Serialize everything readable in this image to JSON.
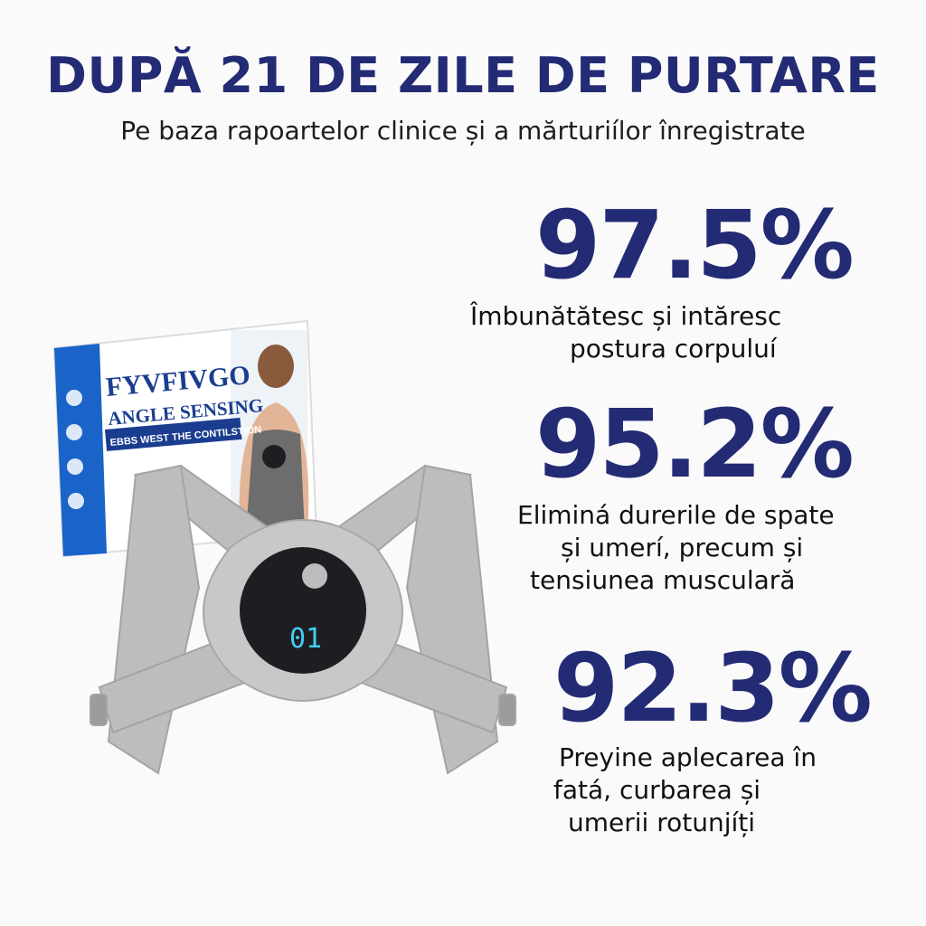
{
  "header": {
    "title": "DUPĂ 21 DE ZILE DE PURTARE",
    "subtitle": "Pe baza rapoartelor clinice și a mărturiílor înregistrate"
  },
  "product": {
    "brand": "FYVFIVGO",
    "line1": "ANGLE SENSING",
    "line2": "EBBS WEST THE CONTILSTION",
    "display": "01",
    "colors": {
      "box_blue": "#1a63c8",
      "strap_gray": "#b9b9b9",
      "device_dark": "#1e1e22",
      "display_cyan": "#3fd0f0"
    }
  },
  "stats": [
    {
      "value": "97.5%",
      "lines": [
        "Îmbunătătesc și intăresc",
        "postura corpuluí"
      ]
    },
    {
      "value": "95.2%",
      "lines": [
        "Eliminá durerile de spate",
        "și umerí, precum și",
        "tensiunea musculară"
      ]
    },
    {
      "value": "92.3%",
      "lines": [
        "Preyine aplecarea în",
        "fatá, curbarea și",
        "umerii rotunjíți"
      ]
    }
  ],
  "colors": {
    "accent": "#232b75"
  }
}
